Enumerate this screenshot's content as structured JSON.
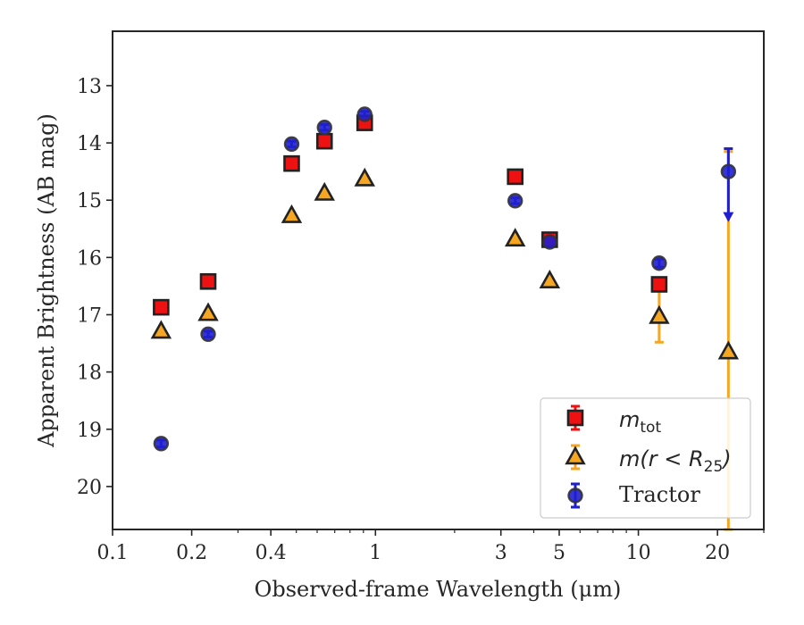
{
  "chart_data": {
    "type": "scatter",
    "title": "",
    "xlabel": "Observed-frame Wavelength (μm)",
    "ylabel": "Apparent Brightness (AB mag)",
    "xscale": "log",
    "xlim": [
      0.1,
      30
    ],
    "ylim": [
      20.75,
      12.05
    ],
    "y_inverted": true,
    "x_ticks": [
      0.1,
      0.2,
      0.4,
      1,
      3,
      5,
      10,
      20
    ],
    "x_tick_labels": [
      "0.1",
      "0.2",
      "0.4",
      "1",
      "3",
      "5",
      "10",
      "20"
    ],
    "y_ticks": [
      13,
      14,
      15,
      16,
      17,
      18,
      19,
      20
    ],
    "y_tick_labels": [
      "13",
      "14",
      "15",
      "16",
      "17",
      "18",
      "19",
      "20"
    ],
    "grid": false,
    "legend_position": "bottom-right",
    "series": [
      {
        "label_main": "m",
        "label_sub": "tot",
        "marker": "square",
        "color": "#ee1111",
        "edge_color": "#222222",
        "points": [
          {
            "x": 0.153,
            "y": 16.87,
            "err": 0.05
          },
          {
            "x": 0.231,
            "y": 16.42,
            "err": 0.05
          },
          {
            "x": 0.48,
            "y": 14.36,
            "err": 0.04
          },
          {
            "x": 0.64,
            "y": 13.97,
            "err": 0.04
          },
          {
            "x": 0.91,
            "y": 13.65,
            "err": 0.04
          },
          {
            "x": 3.4,
            "y": 14.59,
            "err": 0.04
          },
          {
            "x": 4.6,
            "y": 15.69,
            "err": 0.05
          },
          {
            "x": 12.0,
            "y": 16.47,
            "err": 0.05
          }
        ]
      },
      {
        "label_main": "m(r < R",
        "label_sub": "25",
        "label_end": ")",
        "marker": "triangle",
        "color": "#f5a623",
        "edge_color": "#222222",
        "points": [
          {
            "x": 0.153,
            "y": 17.29,
            "err": 0.03
          },
          {
            "x": 0.231,
            "y": 16.98,
            "err": 0.03
          },
          {
            "x": 0.48,
            "y": 15.27,
            "err": 0.03
          },
          {
            "x": 0.64,
            "y": 14.88,
            "err": 0.03
          },
          {
            "x": 0.91,
            "y": 14.63,
            "err": 0.03
          },
          {
            "x": 3.4,
            "y": 15.68,
            "err": 0.03
          },
          {
            "x": 4.6,
            "y": 16.41,
            "err": 0.03
          },
          {
            "x": 12.0,
            "y": 17.03,
            "err": 0.45
          },
          {
            "x": 22.0,
            "y": 17.65,
            "err": 3.5
          }
        ]
      },
      {
        "label_main": "Tractor",
        "marker": "circle",
        "color": "#1f1fcf",
        "edge_color": "#333333",
        "points": [
          {
            "x": 0.153,
            "y": 19.25,
            "err": 0.06
          },
          {
            "x": 0.231,
            "y": 17.34,
            "err": 0.05
          },
          {
            "x": 0.48,
            "y": 14.02,
            "err": 0.05
          },
          {
            "x": 0.64,
            "y": 13.73,
            "err": 0.05
          },
          {
            "x": 0.91,
            "y": 13.5,
            "err": 0.05
          },
          {
            "x": 3.4,
            "y": 15.01,
            "err": 0.05
          },
          {
            "x": 4.6,
            "y": 15.73,
            "err": 0.05
          },
          {
            "x": 12.0,
            "y": 16.1,
            "err": 0.07
          },
          {
            "x": 22.0,
            "y": 14.5,
            "upper_limit": true,
            "err_up": 0.4,
            "arrow_to": 15.35
          }
        ]
      }
    ]
  }
}
